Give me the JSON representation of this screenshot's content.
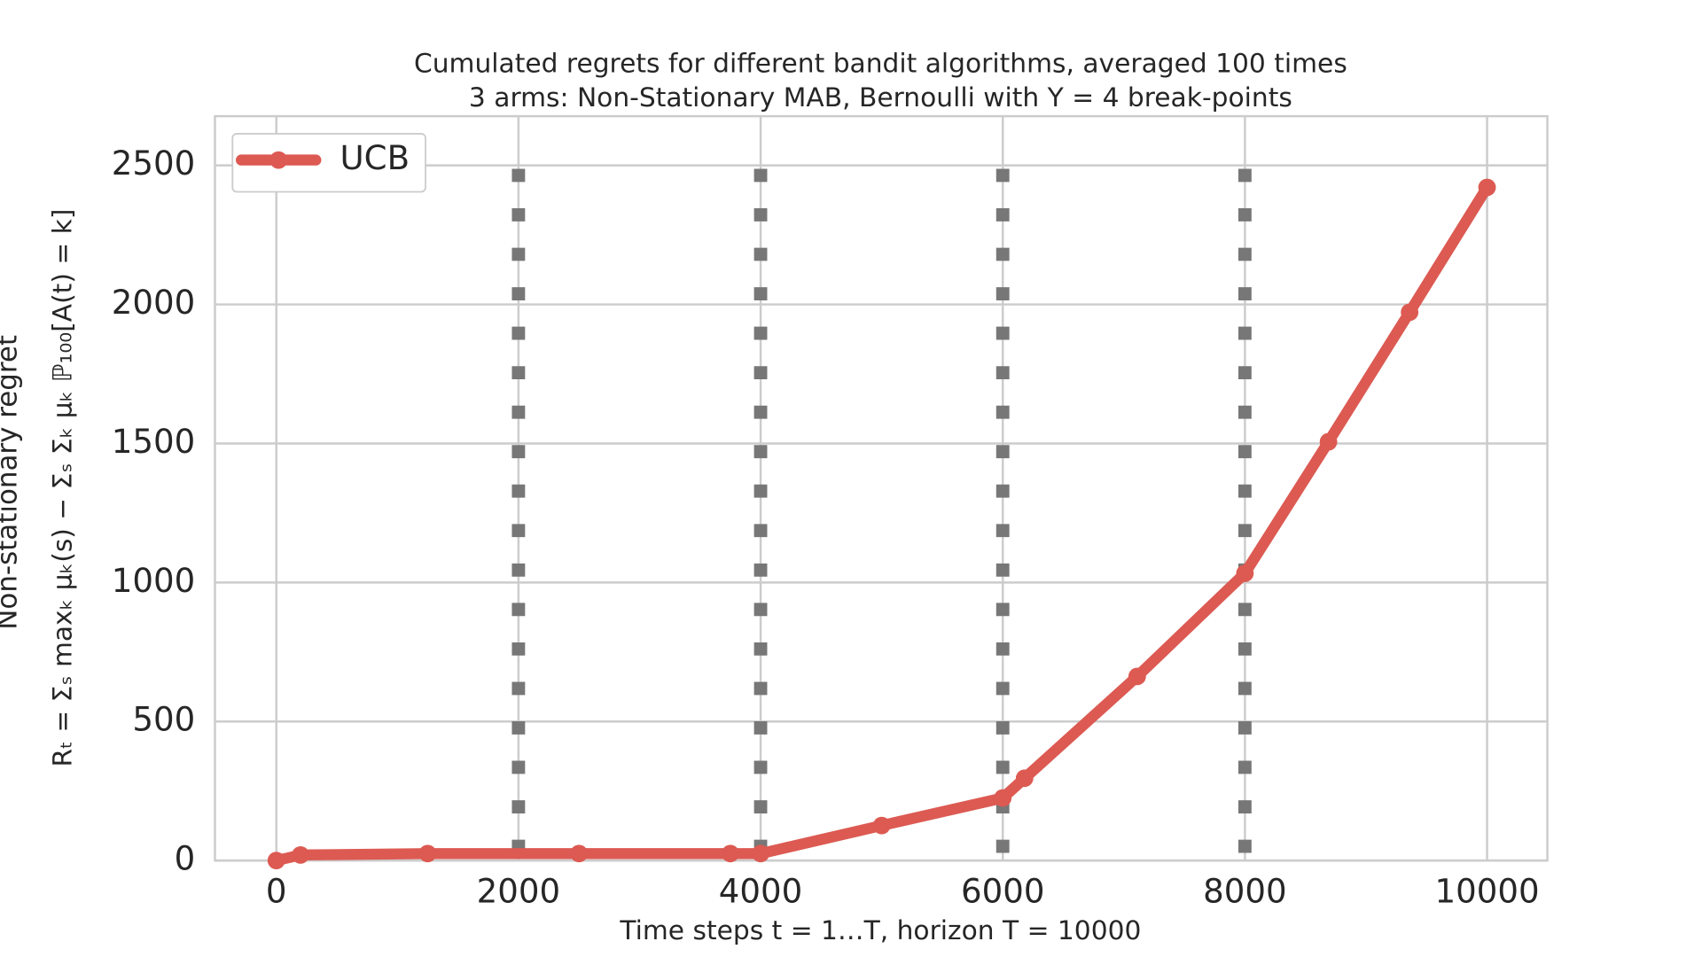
{
  "chart_data": {
    "type": "line",
    "title": "Cumulated regrets for different bandit algorithms, averaged 100 times",
    "subtitle": "3 arms: Non-Stationary MAB, Bernoulli with Υ = 4 break-points",
    "x_label": "Time steps t = 1…T, horizon T = 10000",
    "y_label": "Non-stationary regret",
    "y_label_formula": "Rₜ = Σₛ maxₖ μₖ(s) − Σₛ Σₖ μₖ ℙ₁₀₀[A(t) = k]",
    "x": [
      0,
      200,
      1250,
      2500,
      3750,
      4000,
      5000,
      6000,
      6180,
      7110,
      8000,
      8690,
      9360,
      10000
    ],
    "series": [
      {
        "name": "UCB",
        "color": "#dc5a52",
        "values": [
          0,
          20,
          25,
          25,
          25,
          25,
          126,
          225,
          296,
          662,
          1033,
          1506,
          1972,
          2421
        ]
      }
    ],
    "breakpoints": [
      2000,
      4000,
      6000,
      8000
    ],
    "breakpoint_color": "#777777",
    "xlim": [
      -507,
      10498
    ],
    "ylim": [
      0,
      2677
    ],
    "xticks": [
      0,
      2000,
      4000,
      6000,
      8000,
      10000
    ],
    "yticks": [
      0,
      500,
      1000,
      1500,
      2000,
      2500
    ],
    "grid": true,
    "legend": "upper left"
  }
}
